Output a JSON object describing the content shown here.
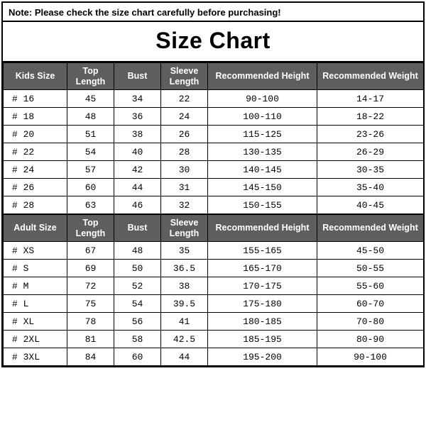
{
  "note_text": "Note: Please check the size chart carefully before purchasing!",
  "title": "Size Chart",
  "kids": {
    "headers": [
      "Kids Size",
      "Top Length",
      "Bust",
      "Sleeve Length",
      "Recommended Height",
      "Recommended Weight"
    ],
    "rows": [
      [
        "# 16",
        "45",
        "34",
        "22",
        "90-100",
        "14-17"
      ],
      [
        "# 18",
        "48",
        "36",
        "24",
        "100-110",
        "18-22"
      ],
      [
        "# 20",
        "51",
        "38",
        "26",
        "115-125",
        "23-26"
      ],
      [
        "# 22",
        "54",
        "40",
        "28",
        "130-135",
        "26-29"
      ],
      [
        "# 24",
        "57",
        "42",
        "30",
        "140-145",
        "30-35"
      ],
      [
        "# 26",
        "60",
        "44",
        "31",
        "145-150",
        "35-40"
      ],
      [
        "# 28",
        "63",
        "46",
        "32",
        "150-155",
        "40-45"
      ]
    ]
  },
  "adult": {
    "headers": [
      "Adult Size",
      "Top Length",
      "Bust",
      "Sleeve Length",
      "Recommended Height",
      "Recommended Weight"
    ],
    "rows": [
      [
        "# XS",
        "67",
        "48",
        "35",
        "155-165",
        "45-50"
      ],
      [
        "# S",
        "69",
        "50",
        "36.5",
        "165-170",
        "50-55"
      ],
      [
        "# M",
        "72",
        "52",
        "38",
        "170-175",
        "55-60"
      ],
      [
        "# L",
        "75",
        "54",
        "39.5",
        "175-180",
        "60-70"
      ],
      [
        "# XL",
        "78",
        "56",
        "41",
        "180-185",
        "70-80"
      ],
      [
        "# 2XL",
        "81",
        "58",
        "42.5",
        "185-195",
        "80-90"
      ],
      [
        "# 3XL",
        "84",
        "60",
        "44",
        "195-200",
        "90-100"
      ]
    ]
  },
  "styling": {
    "header_bg": "#5e5e5e",
    "header_fg": "#ffffff",
    "border_color": "#000000",
    "bg": "#ffffff",
    "title_fontsize": 32,
    "note_fontsize": 13,
    "cell_fontsize": 13,
    "header_fontsize": 12.5,
    "cell_font": "Courier New"
  }
}
